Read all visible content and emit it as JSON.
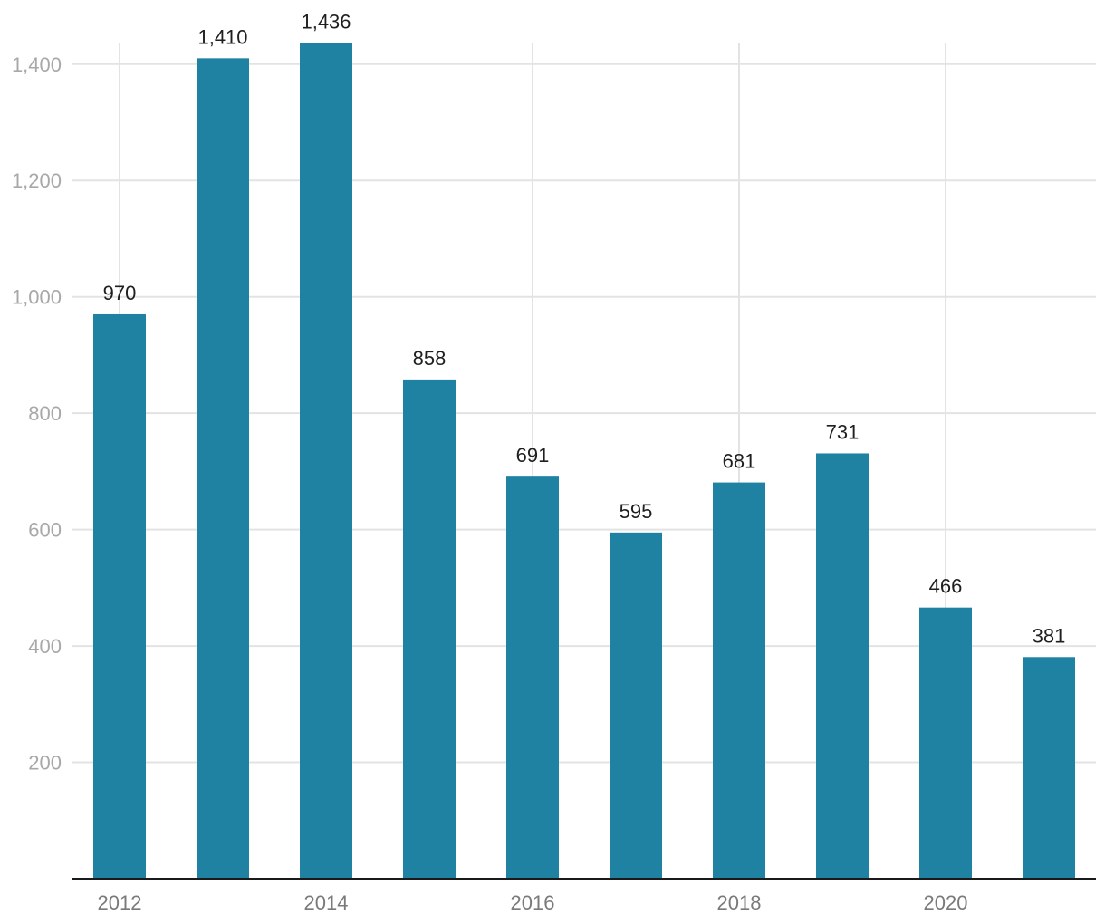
{
  "chart_data": {
    "type": "bar",
    "title": "",
    "xlabel": "",
    "ylabel": "",
    "categories": [
      "2012",
      "2013",
      "2014",
      "2015",
      "2016",
      "2017",
      "2018",
      "2019",
      "2020",
      "2021"
    ],
    "values": [
      970,
      1410,
      1436,
      858,
      691,
      595,
      681,
      731,
      466,
      381
    ],
    "value_labels": [
      "970",
      "1,410",
      "1,436",
      "858",
      "691",
      "595",
      "681",
      "731",
      "466",
      "381"
    ],
    "ylim": [
      0,
      1437
    ],
    "y_ticks": [
      200,
      400,
      600,
      800,
      1000,
      1200,
      1400
    ],
    "y_tick_labels": [
      "200",
      "400",
      "600",
      "800",
      "1,000",
      "1,200",
      "1,400"
    ],
    "x_tick_labels": [
      "2012",
      "2014",
      "2016",
      "2018",
      "2020"
    ],
    "x_tick_categories": [
      "2012",
      "2014",
      "2016",
      "2018",
      "2020"
    ],
    "grid": true,
    "legend": "none",
    "colors": {
      "bar": "#1f82a3",
      "grid": "#e3e3e3",
      "baseline": "#1a1a1a",
      "y_tick_text": "#a8a8a8",
      "x_tick_text": "#7a7a7a",
      "data_label_text": "#1f1f1f"
    }
  }
}
